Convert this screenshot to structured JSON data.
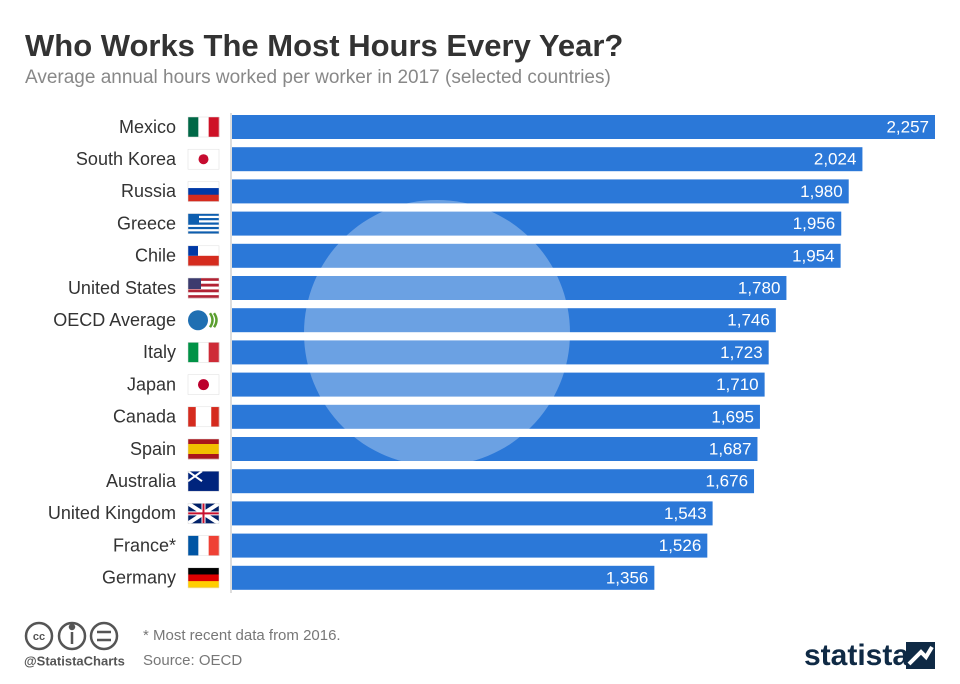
{
  "chart_data": {
    "type": "bar",
    "orientation": "horizontal",
    "title": "Who Works The Most Hours Every Year?",
    "subtitle": "Average annual hours worked per worker in 2017 (selected countries)",
    "categories": [
      "Mexico",
      "South Korea",
      "Russia",
      "Greece",
      "Chile",
      "United States",
      "OECD Average",
      "Italy",
      "Japan",
      "Canada",
      "Spain",
      "Australia",
      "United Kingdom",
      "France*",
      "Germany"
    ],
    "values": [
      2257,
      2024,
      1980,
      1956,
      1954,
      1780,
      1746,
      1723,
      1710,
      1695,
      1687,
      1676,
      1543,
      1526,
      1356
    ],
    "value_labels": [
      "2,257",
      "2,024",
      "1,980",
      "1,956",
      "1,954",
      "1,780",
      "1,746",
      "1,723",
      "1,710",
      "1,695",
      "1,687",
      "1,676",
      "1,543",
      "1,526",
      "1,356"
    ],
    "color": "#2b78d8",
    "footnote": "* Most recent data from 2016.",
    "source": "Source: OECD",
    "credit": "@StatistaCharts",
    "brand": "statista"
  }
}
